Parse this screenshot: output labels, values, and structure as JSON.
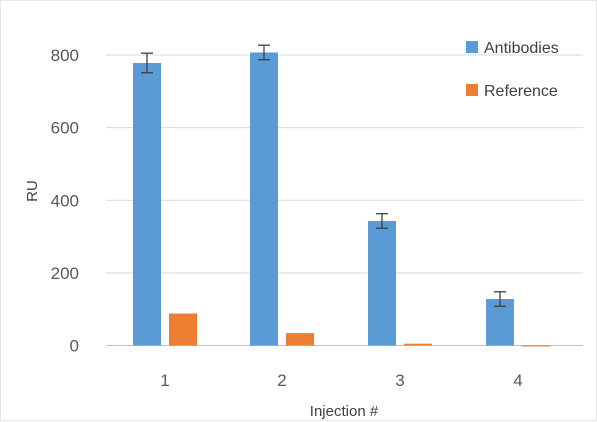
{
  "chart_data": {
    "type": "bar",
    "title": "",
    "xlabel": "Injection #",
    "ylabel": "RU",
    "categories": [
      "1",
      "2",
      "3",
      "4"
    ],
    "series": [
      {
        "name": "Antibodies",
        "color": "#5b9bd5",
        "values": [
          778,
          807,
          343,
          128
        ],
        "error": [
          27,
          20,
          20,
          20
        ]
      },
      {
        "name": "Reference",
        "color": "#ed7d31",
        "values": [
          88,
          34,
          5,
          -2
        ],
        "error": null
      }
    ],
    "ylim": [
      0,
      900
    ],
    "yticks": [
      0,
      200,
      400,
      600,
      800
    ],
    "grid": true,
    "legend": "top-right"
  }
}
